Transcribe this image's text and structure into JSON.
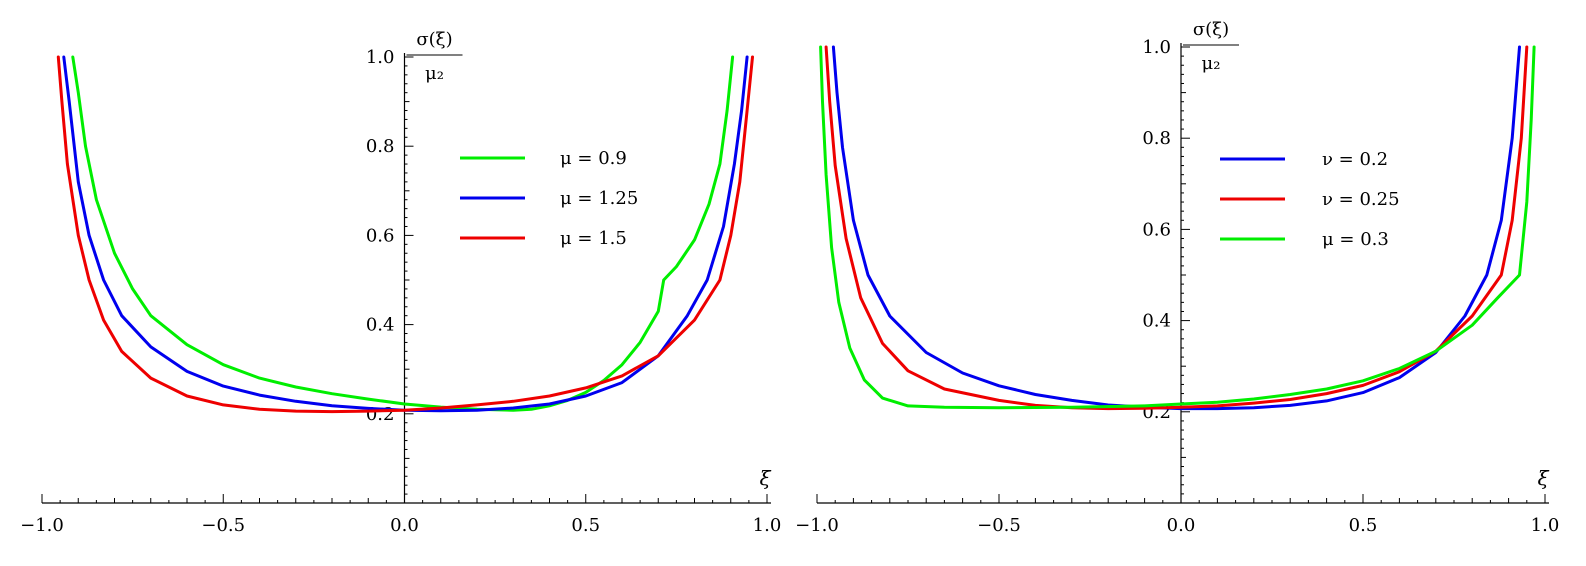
{
  "chart_data": [
    {
      "type": "line",
      "xlabel": "ξ",
      "ylabel_numerator": "σ(ξ)",
      "ylabel_denominator": "μ₂",
      "xlim": [
        -1.0,
        1.0
      ],
      "ylim": [
        0.0,
        1.0
      ],
      "x_ticks": [
        "−1.0",
        "−0.5",
        "0.0",
        "0.5",
        "1.0"
      ],
      "y_ticks": [
        "0.2",
        "0.4",
        "0.6",
        "0.8",
        "1.0"
      ],
      "series": [
        {
          "name": "μ = 0.9",
          "color": "#00ee00",
          "points": [
            [
              -0.915,
              1.0
            ],
            [
              -0.9,
              0.92
            ],
            [
              -0.88,
              0.8
            ],
            [
              -0.85,
              0.68
            ],
            [
              -0.8,
              0.56
            ],
            [
              -0.75,
              0.48
            ],
            [
              -0.7,
              0.42
            ],
            [
              -0.6,
              0.355
            ],
            [
              -0.5,
              0.31
            ],
            [
              -0.4,
              0.28
            ],
            [
              -0.3,
              0.26
            ],
            [
              -0.2,
              0.245
            ],
            [
              -0.1,
              0.233
            ],
            [
              0.0,
              0.222
            ],
            [
              0.1,
              0.215
            ],
            [
              0.2,
              0.21
            ],
            [
              0.3,
              0.208
            ],
            [
              0.35,
              0.21
            ],
            [
              0.4,
              0.218
            ],
            [
              0.45,
              0.23
            ],
            [
              0.5,
              0.248
            ],
            [
              0.55,
              0.275
            ],
            [
              0.6,
              0.31
            ],
            [
              0.65,
              0.36
            ],
            [
              0.7,
              0.43
            ],
            [
              0.715,
              0.5
            ],
            [
              0.75,
              0.53
            ],
            [
              0.8,
              0.59
            ],
            [
              0.84,
              0.67
            ],
            [
              0.87,
              0.76
            ],
            [
              0.89,
              0.88
            ],
            [
              0.905,
              1.0
            ]
          ]
        },
        {
          "name": "μ = 1.25",
          "color": "#0000ee",
          "points": [
            [
              -0.94,
              1.0
            ],
            [
              -0.925,
              0.9
            ],
            [
              -0.9,
              0.72
            ],
            [
              -0.87,
              0.6
            ],
            [
              -0.83,
              0.5
            ],
            [
              -0.78,
              0.42
            ],
            [
              -0.7,
              0.35
            ],
            [
              -0.6,
              0.295
            ],
            [
              -0.5,
              0.262
            ],
            [
              -0.4,
              0.242
            ],
            [
              -0.3,
              0.228
            ],
            [
              -0.2,
              0.218
            ],
            [
              -0.1,
              0.212
            ],
            [
              0.0,
              0.208
            ],
            [
              0.1,
              0.207
            ],
            [
              0.2,
              0.208
            ],
            [
              0.3,
              0.213
            ],
            [
              0.4,
              0.222
            ],
            [
              0.5,
              0.24
            ],
            [
              0.6,
              0.27
            ],
            [
              0.7,
              0.33
            ],
            [
              0.78,
              0.42
            ],
            [
              0.835,
              0.5
            ],
            [
              0.88,
              0.62
            ],
            [
              0.91,
              0.76
            ],
            [
              0.93,
              0.88
            ],
            [
              0.945,
              1.0
            ]
          ]
        },
        {
          "name": "μ = 1.5",
          "color": "#ee0000",
          "points": [
            [
              -0.955,
              1.0
            ],
            [
              -0.945,
              0.9
            ],
            [
              -0.93,
              0.76
            ],
            [
              -0.9,
              0.6
            ],
            [
              -0.87,
              0.5
            ],
            [
              -0.83,
              0.41
            ],
            [
              -0.78,
              0.34
            ],
            [
              -0.7,
              0.28
            ],
            [
              -0.6,
              0.24
            ],
            [
              -0.5,
              0.22
            ],
            [
              -0.4,
              0.21
            ],
            [
              -0.3,
              0.206
            ],
            [
              -0.2,
              0.205
            ],
            [
              -0.1,
              0.206
            ],
            [
              0.0,
              0.208
            ],
            [
              0.1,
              0.213
            ],
            [
              0.2,
              0.22
            ],
            [
              0.3,
              0.228
            ],
            [
              0.4,
              0.24
            ],
            [
              0.5,
              0.258
            ],
            [
              0.6,
              0.285
            ],
            [
              0.7,
              0.33
            ],
            [
              0.8,
              0.41
            ],
            [
              0.87,
              0.5
            ],
            [
              0.9,
              0.6
            ],
            [
              0.925,
              0.72
            ],
            [
              0.945,
              0.88
            ],
            [
              0.96,
              1.0
            ]
          ]
        }
      ]
    },
    {
      "type": "line",
      "xlabel": "ξ",
      "ylabel_numerator": "σ(ξ)",
      "ylabel_denominator": "μ₂",
      "xlim": [
        -1.0,
        1.0
      ],
      "ylim": [
        0.0,
        1.0
      ],
      "x_ticks": [
        "−1.0",
        "−0.5",
        "0.0",
        "0.5",
        "1.0"
      ],
      "y_ticks": [
        "0.2",
        "0.4",
        "0.6",
        "0.8",
        "1.0"
      ],
      "series": [
        {
          "name": "ν = 0.2",
          "color": "#0000ee",
          "points": [
            [
              -0.955,
              1.0
            ],
            [
              -0.945,
              0.9
            ],
            [
              -0.93,
              0.78
            ],
            [
              -0.9,
              0.62
            ],
            [
              -0.86,
              0.5
            ],
            [
              -0.8,
              0.41
            ],
            [
              -0.7,
              0.33
            ],
            [
              -0.6,
              0.285
            ],
            [
              -0.5,
              0.257
            ],
            [
              -0.4,
              0.238
            ],
            [
              -0.3,
              0.225
            ],
            [
              -0.2,
              0.215
            ],
            [
              -0.1,
              0.21
            ],
            [
              0.0,
              0.207
            ],
            [
              0.1,
              0.207
            ],
            [
              0.2,
              0.209
            ],
            [
              0.3,
              0.214
            ],
            [
              0.4,
              0.224
            ],
            [
              0.5,
              0.242
            ],
            [
              0.6,
              0.275
            ],
            [
              0.7,
              0.33
            ],
            [
              0.78,
              0.41
            ],
            [
              0.84,
              0.5
            ],
            [
              0.88,
              0.62
            ],
            [
              0.91,
              0.8
            ],
            [
              0.93,
              1.0
            ]
          ]
        },
        {
          "name": "ν = 0.25",
          "color": "#ee0000",
          "points": [
            [
              -0.975,
              1.0
            ],
            [
              -0.965,
              0.88
            ],
            [
              -0.95,
              0.74
            ],
            [
              -0.92,
              0.58
            ],
            [
              -0.88,
              0.45
            ],
            [
              -0.82,
              0.35
            ],
            [
              -0.75,
              0.29
            ],
            [
              -0.65,
              0.25
            ],
            [
              -0.5,
              0.225
            ],
            [
              -0.4,
              0.214
            ],
            [
              -0.3,
              0.209
            ],
            [
              -0.2,
              0.207
            ],
            [
              -0.1,
              0.208
            ],
            [
              0.0,
              0.21
            ],
            [
              0.1,
              0.213
            ],
            [
              0.2,
              0.219
            ],
            [
              0.3,
              0.227
            ],
            [
              0.4,
              0.24
            ],
            [
              0.5,
              0.258
            ],
            [
              0.6,
              0.288
            ],
            [
              0.7,
              0.333
            ],
            [
              0.8,
              0.41
            ],
            [
              0.88,
              0.5
            ],
            [
              0.91,
              0.62
            ],
            [
              0.935,
              0.8
            ],
            [
              0.95,
              1.0
            ]
          ]
        },
        {
          "name": "μ = 0.3",
          "color": "#00ee00",
          "points": [
            [
              -0.99,
              1.0
            ],
            [
              -0.985,
              0.88
            ],
            [
              -0.975,
              0.72
            ],
            [
              -0.96,
              0.56
            ],
            [
              -0.94,
              0.44
            ],
            [
              -0.91,
              0.34
            ],
            [
              -0.87,
              0.27
            ],
            [
              -0.82,
              0.23
            ],
            [
              -0.75,
              0.213
            ],
            [
              -0.65,
              0.21
            ],
            [
              -0.5,
              0.209
            ],
            [
              -0.3,
              0.21
            ],
            [
              -0.1,
              0.213
            ],
            [
              0.0,
              0.217
            ],
            [
              0.1,
              0.221
            ],
            [
              0.2,
              0.228
            ],
            [
              0.3,
              0.238
            ],
            [
              0.4,
              0.25
            ],
            [
              0.5,
              0.268
            ],
            [
              0.6,
              0.295
            ],
            [
              0.7,
              0.333
            ],
            [
              0.8,
              0.39
            ],
            [
              0.87,
              0.45
            ],
            [
              0.93,
              0.5
            ],
            [
              0.95,
              0.66
            ],
            [
              0.962,
              0.84
            ],
            [
              0.97,
              1.0
            ]
          ]
        }
      ]
    }
  ]
}
